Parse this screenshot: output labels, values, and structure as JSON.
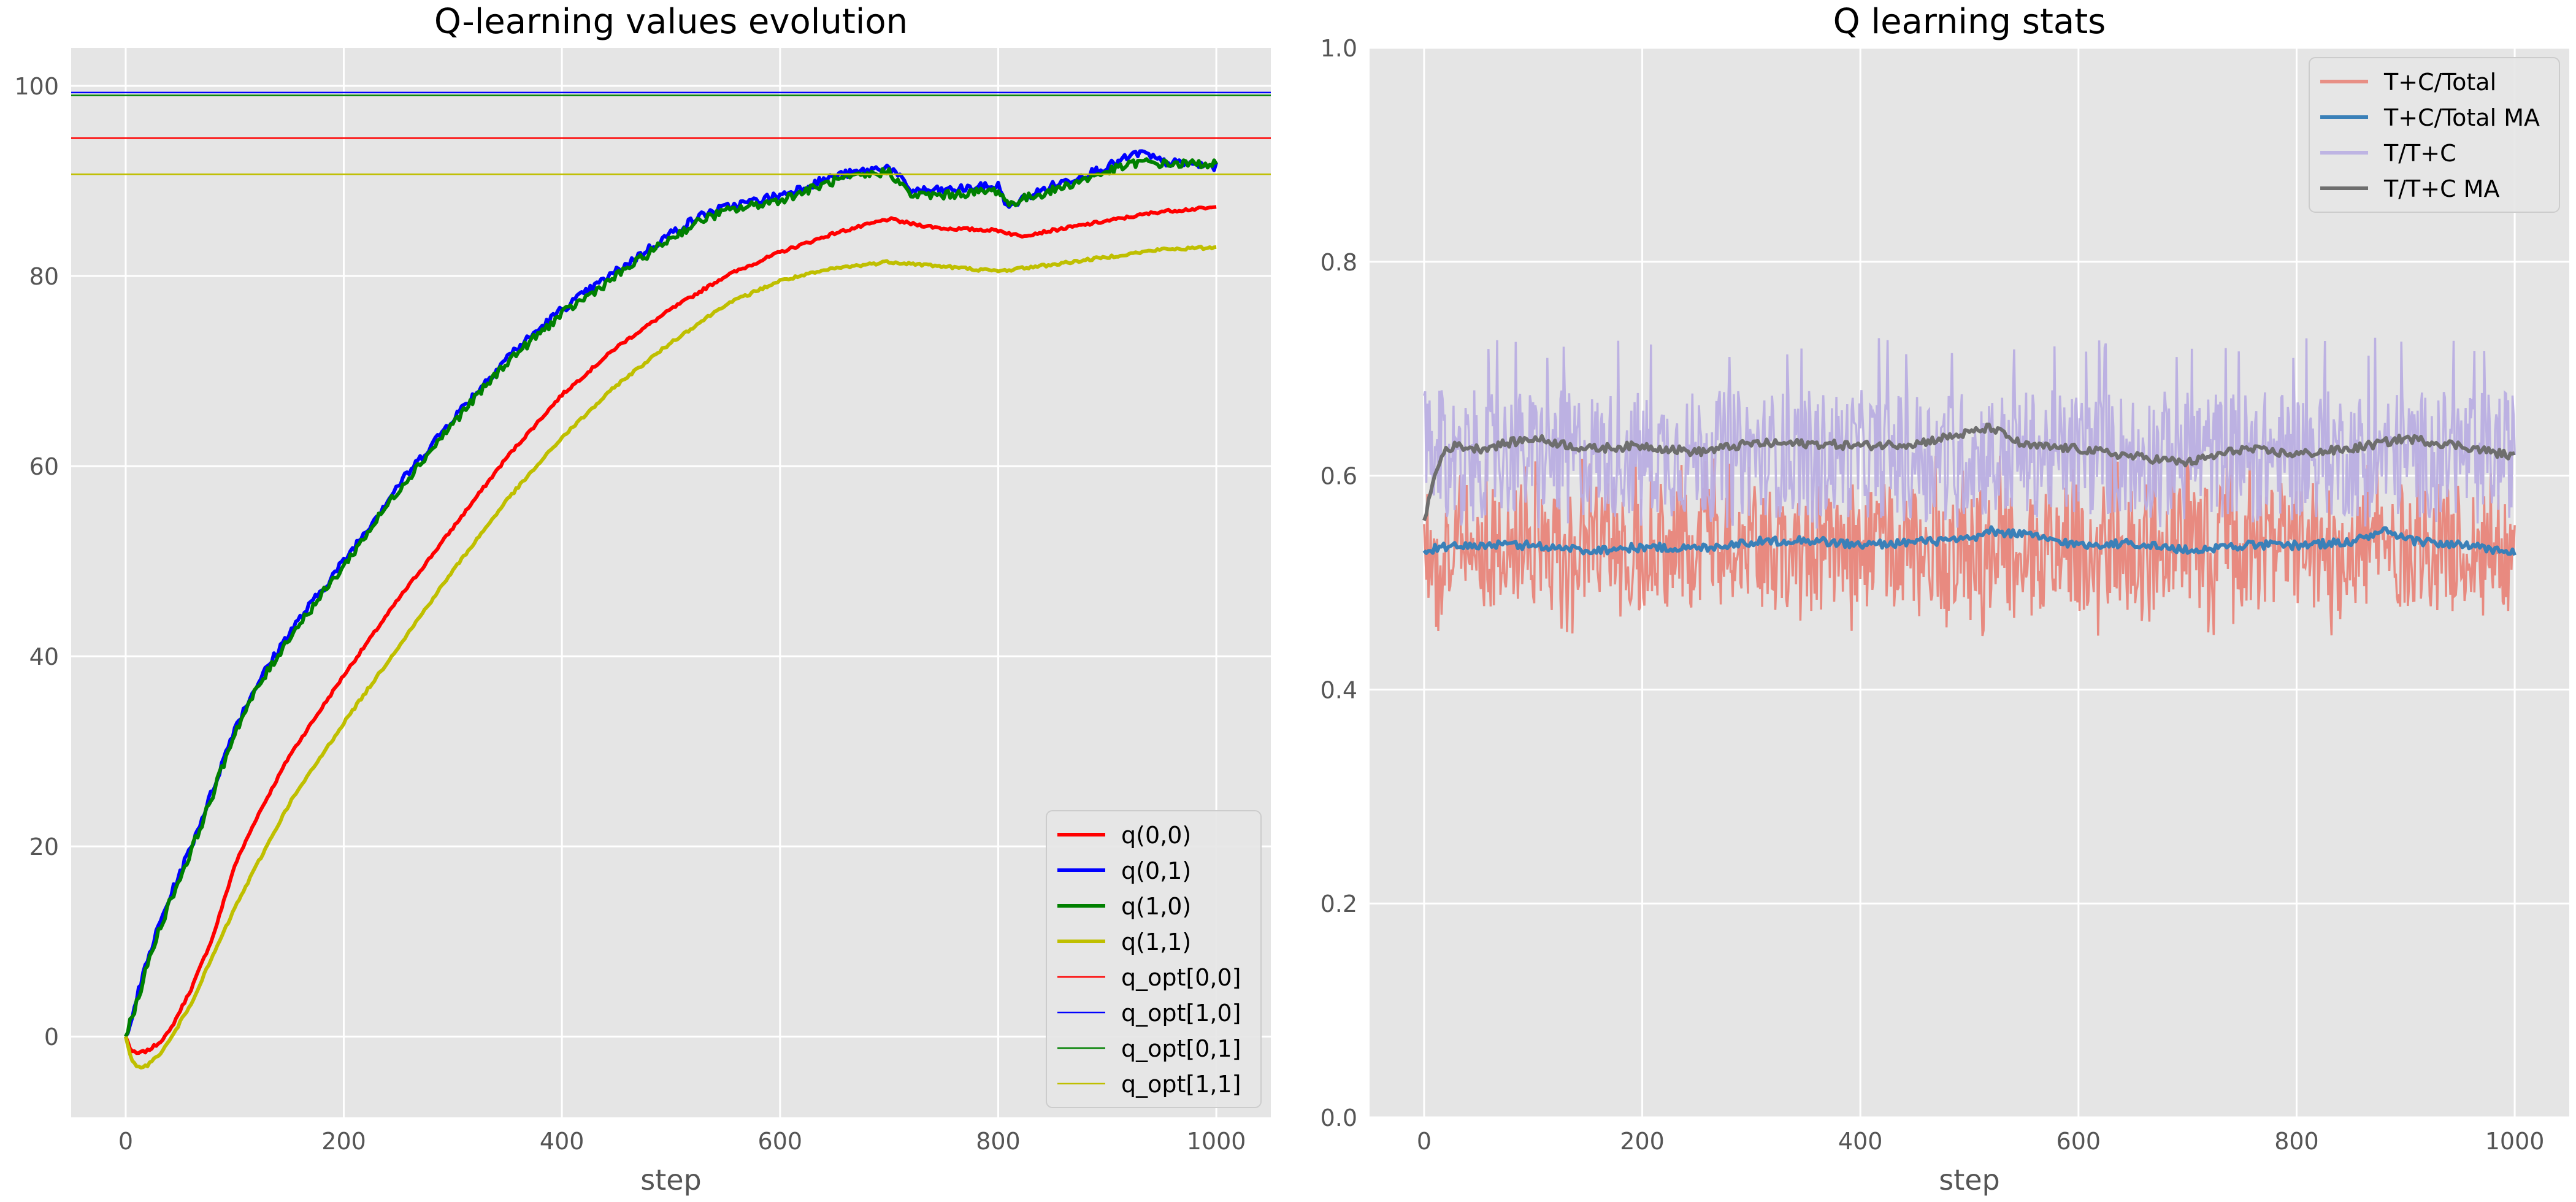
{
  "chart_data": [
    {
      "type": "line",
      "title": "Q-learning values evolution",
      "xlabel": "step",
      "ylabel": "",
      "xlim": [
        -50,
        1050
      ],
      "ylim": [
        -8.5,
        104
      ],
      "xticks": [
        0,
        200,
        400,
        600,
        800,
        1000
      ],
      "yticks": [
        0,
        20,
        40,
        60,
        80,
        100
      ],
      "grid": true,
      "legend_position": "lower-right",
      "series": [
        {
          "name": "q(0,0)",
          "color": "#ff0000",
          "style": "thick",
          "x": [
            0,
            5,
            10,
            20,
            30,
            40,
            60,
            80,
            100,
            120,
            150,
            200,
            250,
            300,
            350,
            400,
            450,
            500,
            550,
            600,
            650,
            700,
            720,
            750,
            800,
            820,
            850,
            900,
            950,
            1000
          ],
          "y": [
            0,
            -1.5,
            -1.8,
            -1.5,
            -0.7,
            0.5,
            5,
            10.5,
            18,
            23,
            29.5,
            38,
            46,
            53.5,
            61,
            67.5,
            72.5,
            76.5,
            80,
            82.5,
            84.5,
            86,
            85.5,
            85,
            84.8,
            84.2,
            84.8,
            85.8,
            86.8,
            87.2
          ]
        },
        {
          "name": "q(0,1)",
          "color": "#0000ff",
          "style": "thick",
          "x": [
            0,
            10,
            20,
            30,
            40,
            60,
            80,
            100,
            120,
            150,
            200,
            250,
            300,
            350,
            400,
            450,
            500,
            530,
            550,
            600,
            650,
            700,
            720,
            750,
            800,
            810,
            820,
            850,
            900,
            930,
            950,
            1000
          ],
          "y": [
            0,
            4,
            8,
            11.5,
            14.5,
            20,
            26,
            32.5,
            37,
            42.5,
            50,
            58,
            65,
            71.5,
            76.5,
            80.5,
            84.5,
            86.5,
            87.2,
            88.5,
            90.5,
            91.5,
            89,
            89,
            89.5,
            87,
            88,
            89.5,
            91.5,
            93,
            92,
            91.5
          ]
        },
        {
          "name": "q(1,0)",
          "color": "#008000",
          "style": "thick",
          "x": [
            0,
            10,
            20,
            30,
            40,
            60,
            80,
            100,
            120,
            150,
            200,
            250,
            300,
            350,
            400,
            450,
            500,
            530,
            550,
            600,
            650,
            700,
            720,
            750,
            800,
            810,
            820,
            850,
            900,
            930,
            950,
            1000
          ],
          "y": [
            0,
            3.5,
            7.5,
            11,
            14,
            19.5,
            25.5,
            32,
            36.5,
            42,
            49.5,
            57.5,
            64.5,
            71,
            76,
            80,
            84,
            86,
            86.8,
            88,
            90,
            91,
            88.5,
            88.5,
            89,
            87.5,
            88,
            89,
            91,
            92,
            91.8,
            91.8
          ]
        },
        {
          "name": "q(1,1)",
          "color": "#bfbf00",
          "style": "thick",
          "x": [
            0,
            5,
            10,
            20,
            30,
            40,
            60,
            80,
            100,
            120,
            150,
            200,
            250,
            300,
            350,
            400,
            450,
            500,
            550,
            600,
            650,
            700,
            720,
            750,
            800,
            820,
            850,
            900,
            950,
            1000
          ],
          "y": [
            0,
            -2.5,
            -3.2,
            -3,
            -2,
            -0.5,
            3.5,
            8.5,
            13.5,
            18,
            24.5,
            33,
            41,
            49,
            56.5,
            63,
            68.5,
            73,
            77,
            79.5,
            80.8,
            81.5,
            81.3,
            81,
            80.5,
            80.8,
            81.2,
            82,
            82.8,
            83
          ]
        },
        {
          "name": "q_opt[0,0]",
          "color": "#ff0000",
          "style": "thin",
          "hline": 94.5
        },
        {
          "name": "q_opt[1,0]",
          "color": "#0000ff",
          "style": "thin",
          "hline": 99.3
        },
        {
          "name": "q_opt[0,1]",
          "color": "#008000",
          "style": "thin",
          "hline": 99.0
        },
        {
          "name": "q_opt[1,1]",
          "color": "#bfbf00",
          "style": "thin",
          "hline": 90.7
        }
      ]
    },
    {
      "type": "line",
      "title": "Q learning stats",
      "xlabel": "step",
      "ylabel": "",
      "xlim": [
        -50,
        1050
      ],
      "ylim": [
        0,
        1.0
      ],
      "xticks": [
        0,
        200,
        400,
        600,
        800,
        1000
      ],
      "yticks": [
        0.0,
        0.2,
        0.4,
        0.6,
        0.8,
        1.0
      ],
      "ytick_labels": [
        "0.0",
        "0.2",
        "0.4",
        "0.6",
        "0.8",
        "1.0"
      ],
      "grid": true,
      "legend_position": "top-right",
      "series": [
        {
          "name": "T+C/Total",
          "color": "#e8857a",
          "style": "noisy",
          "mean": 0.533,
          "amplitude": 0.06,
          "min": 0.45,
          "max": 0.62
        },
        {
          "name": "T+C/Total MA",
          "color": "#3a80b8",
          "style": "ma",
          "x": [
            0,
            10,
            50,
            100,
            150,
            200,
            250,
            300,
            350,
            400,
            450,
            500,
            520,
            550,
            600,
            650,
            700,
            750,
            800,
            850,
            880,
            900,
            950,
            1000
          ],
          "y": [
            0.53,
            0.532,
            0.535,
            0.535,
            0.53,
            0.533,
            0.532,
            0.538,
            0.54,
            0.535,
            0.538,
            0.54,
            0.548,
            0.545,
            0.535,
            0.537,
            0.53,
            0.535,
            0.535,
            0.538,
            0.548,
            0.54,
            0.535,
            0.528
          ]
        },
        {
          "name": "T/T+C",
          "color": "#b9aee2",
          "style": "noisy",
          "mean": 0.62,
          "amplitude": 0.06,
          "min": 0.55,
          "max": 0.73
        },
        {
          "name": "T/T+C MA",
          "color": "#6e6e6e",
          "style": "ma",
          "x": [
            0,
            5,
            10,
            15,
            20,
            30,
            50,
            100,
            150,
            200,
            250,
            300,
            350,
            400,
            450,
            500,
            520,
            550,
            600,
            650,
            700,
            750,
            800,
            850,
            900,
            950,
            1000
          ],
          "y": [
            0.558,
            0.58,
            0.6,
            0.615,
            0.625,
            0.628,
            0.625,
            0.635,
            0.625,
            0.628,
            0.622,
            0.63,
            0.63,
            0.628,
            0.63,
            0.64,
            0.645,
            0.628,
            0.625,
            0.618,
            0.612,
            0.625,
            0.62,
            0.625,
            0.635,
            0.628,
            0.618
          ]
        }
      ]
    }
  ]
}
